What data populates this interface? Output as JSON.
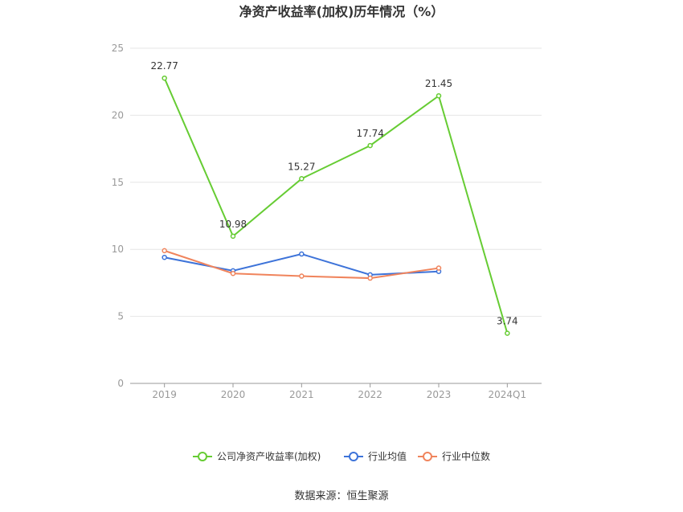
{
  "chart_data": {
    "type": "line",
    "title": "净资产收益率(加权)历年情况（%）",
    "categories": [
      "2019",
      "2020",
      "2021",
      "2022",
      "2023",
      "2024Q1"
    ],
    "ylim": [
      0,
      25
    ],
    "yticks": [
      0,
      5,
      10,
      15,
      20,
      25
    ],
    "grid": true,
    "legend_position": "bottom",
    "series": [
      {
        "name": "公司净资产收益率(加权)",
        "color": "#66cc33",
        "values": [
          22.77,
          10.98,
          15.27,
          17.74,
          21.45,
          3.74
        ],
        "labels": [
          "22.77",
          "10.98",
          "15.27",
          "17.74",
          "21.45",
          "3.74"
        ]
      },
      {
        "name": "行业均值",
        "color": "#3d73d9",
        "values": [
          9.4,
          8.4,
          9.65,
          8.1,
          8.35,
          null
        ]
      },
      {
        "name": "行业中位数",
        "color": "#f0845c",
        "values": [
          9.9,
          8.2,
          8.0,
          7.85,
          8.6,
          null
        ]
      }
    ]
  },
  "source_label": "数据来源：恒生聚源"
}
